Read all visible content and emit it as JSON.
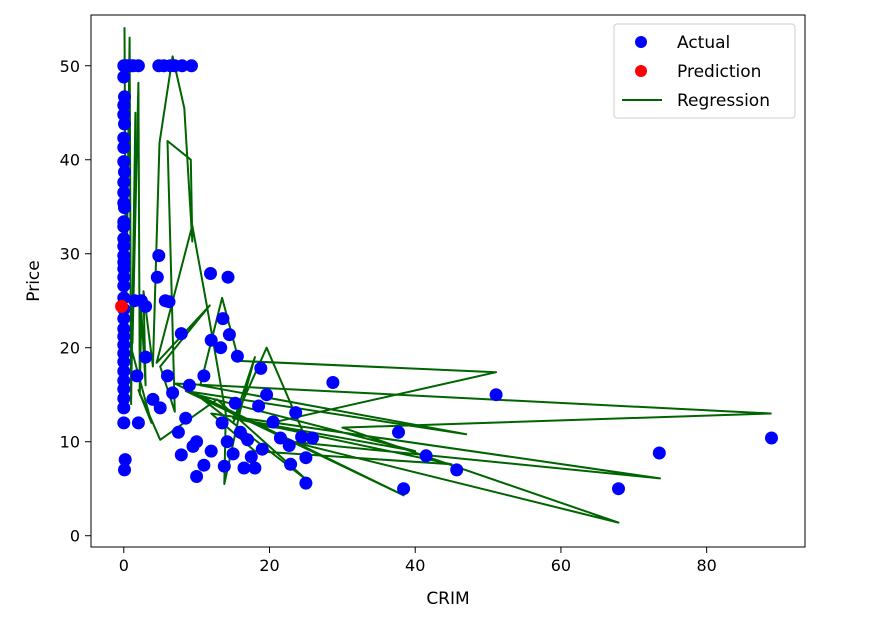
{
  "chart_data": {
    "type": "scatter",
    "title": "",
    "xlabel": "CRIM",
    "ylabel": "Price",
    "xlim": [
      -4.5,
      93.5
    ],
    "ylim": [
      -1.2,
      55.4
    ],
    "xticks": [
      0,
      20,
      40,
      60,
      80
    ],
    "yticks": [
      0,
      10,
      20,
      30,
      40,
      50
    ],
    "grid": false,
    "legend": {
      "placement": "top-right",
      "entries": [
        "Actual",
        "Prediction",
        "Regression"
      ]
    },
    "series": [
      {
        "name": "Actual",
        "kind": "scatter",
        "color": "#0000ff",
        "points": [
          [
            0.0,
            50
          ],
          [
            0.1,
            50
          ],
          [
            0.3,
            50
          ],
          [
            0.6,
            50
          ],
          [
            1.0,
            50
          ],
          [
            1.3,
            50
          ],
          [
            2.0,
            50
          ],
          [
            4.8,
            50
          ],
          [
            5.5,
            50
          ],
          [
            6.4,
            50
          ],
          [
            7.0,
            50
          ],
          [
            8.0,
            50
          ],
          [
            9.3,
            50
          ],
          [
            0.0,
            48.8
          ],
          [
            0.1,
            46.7
          ],
          [
            0.0,
            45.8
          ],
          [
            0.0,
            44.8
          ],
          [
            0.1,
            43.8
          ],
          [
            0.0,
            42.3
          ],
          [
            0.0,
            41.3
          ],
          [
            0.0,
            39.8
          ],
          [
            0.1,
            38.7
          ],
          [
            0.0,
            37.6
          ],
          [
            0.0,
            36.5
          ],
          [
            0.0,
            35.4
          ],
          [
            0.1,
            34.9
          ],
          [
            0.0,
            33.4
          ],
          [
            0.0,
            32.9
          ],
          [
            0.0,
            31.6
          ],
          [
            0.0,
            30.8
          ],
          [
            0.0,
            29.8
          ],
          [
            0.0,
            29.1
          ],
          [
            0.0,
            28.4
          ],
          [
            0.0,
            27.5
          ],
          [
            0.0,
            26.6
          ],
          [
            0.0,
            25.3
          ],
          [
            0.0,
            24.1
          ],
          [
            0.0,
            23.1
          ],
          [
            0.0,
            22.0
          ],
          [
            0.0,
            21.2
          ],
          [
            0.0,
            20.3
          ],
          [
            0.0,
            19.4
          ],
          [
            0.0,
            18.5
          ],
          [
            0.0,
            17.5
          ],
          [
            0.0,
            16.5
          ],
          [
            0.0,
            15.6
          ],
          [
            0.0,
            14.6
          ],
          [
            0.0,
            13.6
          ],
          [
            0.0,
            12.0
          ],
          [
            0.2,
            8.1
          ],
          [
            0.1,
            7.0
          ],
          [
            4.8,
            29.8
          ],
          [
            4.6,
            27.5
          ],
          [
            11.9,
            27.9
          ],
          [
            14.3,
            27.5
          ],
          [
            1.5,
            25.0
          ],
          [
            2.4,
            25.0
          ],
          [
            3.0,
            24.4
          ],
          [
            5.7,
            25.0
          ],
          [
            6.2,
            24.9
          ],
          [
            13.6,
            23.1
          ],
          [
            7.9,
            21.5
          ],
          [
            12.0,
            20.8
          ],
          [
            14.5,
            21.4
          ],
          [
            13.3,
            20.0
          ],
          [
            15.6,
            19.1
          ],
          [
            18.8,
            17.8
          ],
          [
            28.7,
            16.3
          ],
          [
            19.6,
            15.0
          ],
          [
            15.3,
            14.1
          ],
          [
            18.5,
            13.8
          ],
          [
            23.6,
            13.1
          ],
          [
            51.1,
            15.0
          ],
          [
            2.0,
            12.0
          ],
          [
            1.8,
            17.0
          ],
          [
            3.0,
            19.0
          ],
          [
            4.0,
            14.5
          ],
          [
            5.0,
            13.6
          ],
          [
            6.0,
            17.0
          ],
          [
            6.7,
            15.2
          ],
          [
            7.5,
            11.0
          ],
          [
            8.5,
            12.5
          ],
          [
            9.0,
            16.0
          ],
          [
            10.0,
            10.0
          ],
          [
            11.0,
            17.0
          ],
          [
            12.0,
            9.0
          ],
          [
            13.5,
            12.0
          ],
          [
            14.2,
            10.0
          ],
          [
            15.0,
            8.7
          ],
          [
            16.0,
            11.0
          ],
          [
            17.0,
            10.2
          ],
          [
            17.5,
            8.4
          ],
          [
            19.0,
            9.2
          ],
          [
            20.5,
            12.1
          ],
          [
            21.5,
            10.4
          ],
          [
            22.7,
            9.6
          ],
          [
            24.4,
            10.5
          ],
          [
            25.0,
            8.3
          ],
          [
            25.9,
            10.4
          ],
          [
            18.0,
            7.2
          ],
          [
            16.5,
            7.2
          ],
          [
            13.8,
            7.4
          ],
          [
            11.0,
            7.5
          ],
          [
            10.0,
            6.3
          ],
          [
            7.9,
            8.6
          ],
          [
            9.5,
            9.5
          ],
          [
            25.0,
            5.6
          ],
          [
            22.9,
            7.6
          ],
          [
            37.7,
            11.0
          ],
          [
            41.5,
            8.5
          ],
          [
            45.7,
            7.0
          ],
          [
            38.4,
            5.0
          ],
          [
            67.9,
            5.0
          ],
          [
            73.5,
            8.8
          ],
          [
            88.9,
            10.4
          ]
        ]
      },
      {
        "name": "Prediction",
        "kind": "scatter",
        "color": "#ff0000",
        "points": [
          [
            -0.3,
            24.4
          ]
        ]
      },
      {
        "name": "Regression",
        "kind": "line",
        "color": "#006400",
        "points": [
          [
            0.1,
            54.1
          ],
          [
            0.3,
            22.0
          ],
          [
            0.8,
            53.0
          ],
          [
            1.0,
            14.0
          ],
          [
            1.6,
            45.0
          ],
          [
            1.2,
            20.5
          ],
          [
            2.0,
            48.2
          ],
          [
            2.2,
            15.0
          ],
          [
            2.4,
            24.0
          ],
          [
            3.0,
            16.0
          ],
          [
            2.7,
            26.0
          ],
          [
            4.0,
            18.0
          ],
          [
            4.9,
            41.8
          ],
          [
            6.7,
            51.0
          ],
          [
            8.3,
            45.5
          ],
          [
            9.4,
            31.3
          ],
          [
            9.2,
            40.0
          ],
          [
            6.0,
            42.0
          ],
          [
            6.5,
            28.0
          ],
          [
            7.0,
            13.2
          ],
          [
            5.0,
            18.0
          ],
          [
            11.8,
            24.5
          ],
          [
            4.5,
            18.4
          ],
          [
            9.4,
            33.0
          ],
          [
            11.4,
            24.5
          ],
          [
            14.0,
            13.0
          ],
          [
            13.8,
            5.5
          ],
          [
            16.0,
            13.4
          ],
          [
            18.0,
            19.0
          ],
          [
            15.0,
            12.0
          ],
          [
            19.6,
            20.0
          ],
          [
            24.5,
            11.2
          ],
          [
            18.5,
            11.7
          ],
          [
            51.1,
            17.4
          ],
          [
            15.8,
            18.6
          ],
          [
            13.5,
            25.3
          ],
          [
            10.5,
            16.0
          ],
          [
            47.0,
            10.8
          ],
          [
            8.5,
            15.4
          ],
          [
            38.4,
            4.3
          ],
          [
            7.0,
            16.2
          ],
          [
            88.8,
            13.0
          ],
          [
            30.0,
            11.5
          ],
          [
            67.9,
            1.4
          ],
          [
            23.0,
            10.0
          ],
          [
            73.6,
            6.1
          ],
          [
            12.0,
            13.0
          ],
          [
            18.0,
            9.0
          ],
          [
            45.0,
            7.6
          ],
          [
            15.0,
            12.5
          ],
          [
            40.0,
            9.0
          ],
          [
            10.0,
            15.0
          ],
          [
            25.0,
            6.0
          ],
          [
            12.8,
            14.5
          ],
          [
            5.0,
            10.2
          ],
          [
            2.0,
            15.5
          ],
          [
            3.8,
            12.0
          ],
          [
            1.0,
            20.0
          ]
        ]
      }
    ]
  }
}
